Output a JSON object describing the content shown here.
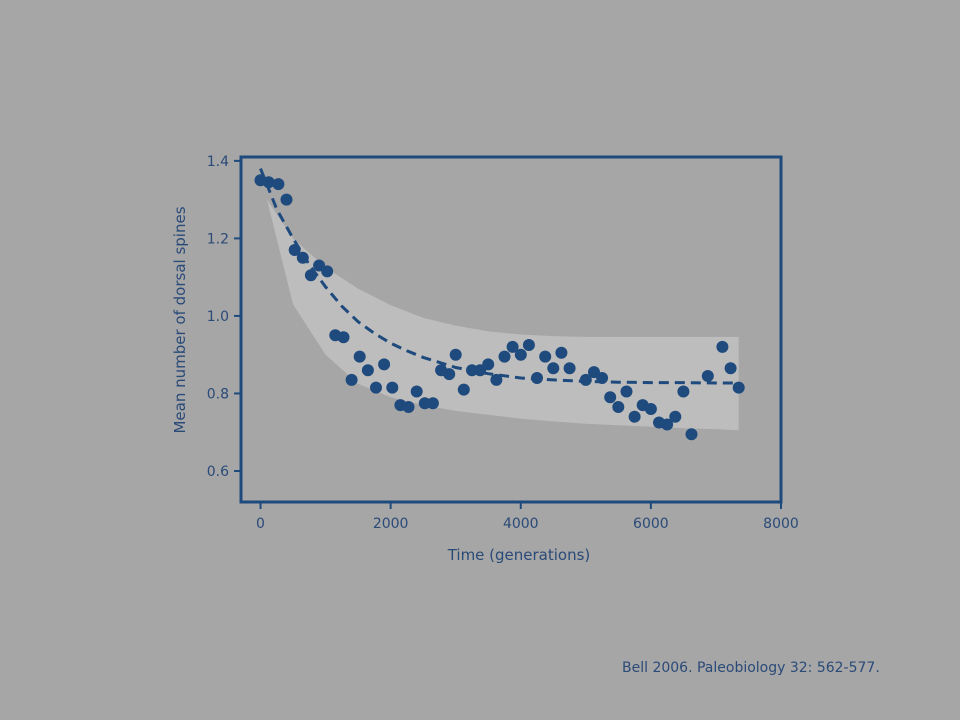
{
  "citation": "Bell 2006. Paleobiology 32: 562-577.",
  "colors": {
    "background": "#a6a6a6",
    "band": "#bdbdbd",
    "primary": "#1f4a7d",
    "text": "#2a4a78"
  },
  "chart_data": {
    "type": "scatter",
    "title": "",
    "xlabel": "Time (generations)",
    "ylabel": "Mean number of dorsal spines",
    "xlim": [
      -300,
      8000
    ],
    "ylim": [
      0.52,
      1.41
    ],
    "x_ticks": [
      0,
      2000,
      4000,
      6000,
      8000
    ],
    "x_tick_labels": [
      "0",
      "2000",
      "4000",
      "6000",
      "8000"
    ],
    "y_ticks": [
      0.6,
      0.8,
      1.0,
      1.2,
      1.4
    ],
    "y_tick_labels": [
      "0.6",
      "0.8",
      "1.0",
      "1.2",
      "1.4"
    ],
    "grid": false,
    "legend": "none",
    "series": [
      {
        "type": "scatter",
        "x": [
          0,
          125,
          275,
          400,
          525,
          650,
          775,
          900,
          1025,
          1150,
          1275,
          1400,
          1525,
          1650,
          1775,
          1900,
          2025,
          2150,
          2275,
          2400,
          2525,
          2650,
          2775,
          2900,
          3000,
          3125,
          3250,
          3375,
          3500,
          3625,
          3750,
          3875,
          4000,
          4125,
          4250,
          4375,
          4500,
          4625,
          4750,
          5000,
          5125,
          5250,
          5375,
          5500,
          5625,
          5750,
          5875,
          6000,
          6125,
          6250,
          6375,
          6500,
          6625,
          6875,
          7100,
          7225,
          7350
        ],
        "y": [
          1.35,
          1.345,
          1.34,
          1.3,
          1.17,
          1.15,
          1.105,
          1.13,
          1.115,
          0.95,
          0.945,
          0.835,
          0.895,
          0.86,
          0.815,
          0.875,
          0.815,
          0.77,
          0.765,
          0.805,
          0.775,
          0.775,
          0.86,
          0.85,
          0.9,
          0.81,
          0.86,
          0.86,
          0.875,
          0.835,
          0.895,
          0.92,
          0.9,
          0.925,
          0.84,
          0.895,
          0.865,
          0.905,
          0.865,
          0.835,
          0.855,
          0.84,
          0.79,
          0.765,
          0.805,
          0.74,
          0.77,
          0.76,
          0.725,
          0.72,
          0.74,
          0.805,
          0.695,
          0.845,
          0.92,
          0.865,
          0.815
        ]
      },
      {
        "type": "fit",
        "style": "dashed",
        "x": [
          0,
          250,
          500,
          750,
          1000,
          1250,
          1500,
          1750,
          2000,
          2250,
          2500,
          2750,
          3000,
          3500,
          4000,
          4500,
          5000,
          5500,
          6000,
          6500,
          7000,
          7350
        ],
        "y": [
          1.38,
          1.275,
          1.2,
          1.132,
          1.075,
          1.025,
          0.985,
          0.955,
          0.93,
          0.91,
          0.893,
          0.88,
          0.867,
          0.851,
          0.84,
          0.835,
          0.831,
          0.829,
          0.828,
          0.828,
          0.827,
          0.827
        ]
      },
      {
        "type": "band",
        "x": [
          100,
          500,
          1000,
          1500,
          2000,
          2500,
          3000,
          3500,
          4000,
          4500,
          5000,
          5500,
          6000,
          6500,
          7000,
          7350
        ],
        "upper": [
          1.3,
          1.2,
          1.125,
          1.07,
          1.028,
          0.995,
          0.975,
          0.96,
          0.952,
          0.948,
          0.946,
          0.946,
          0.946,
          0.946,
          0.946,
          0.946
        ],
        "lower": [
          1.3,
          1.03,
          0.9,
          0.825,
          0.79,
          0.77,
          0.755,
          0.745,
          0.735,
          0.728,
          0.722,
          0.718,
          0.714,
          0.71,
          0.708,
          0.705
        ]
      }
    ]
  }
}
